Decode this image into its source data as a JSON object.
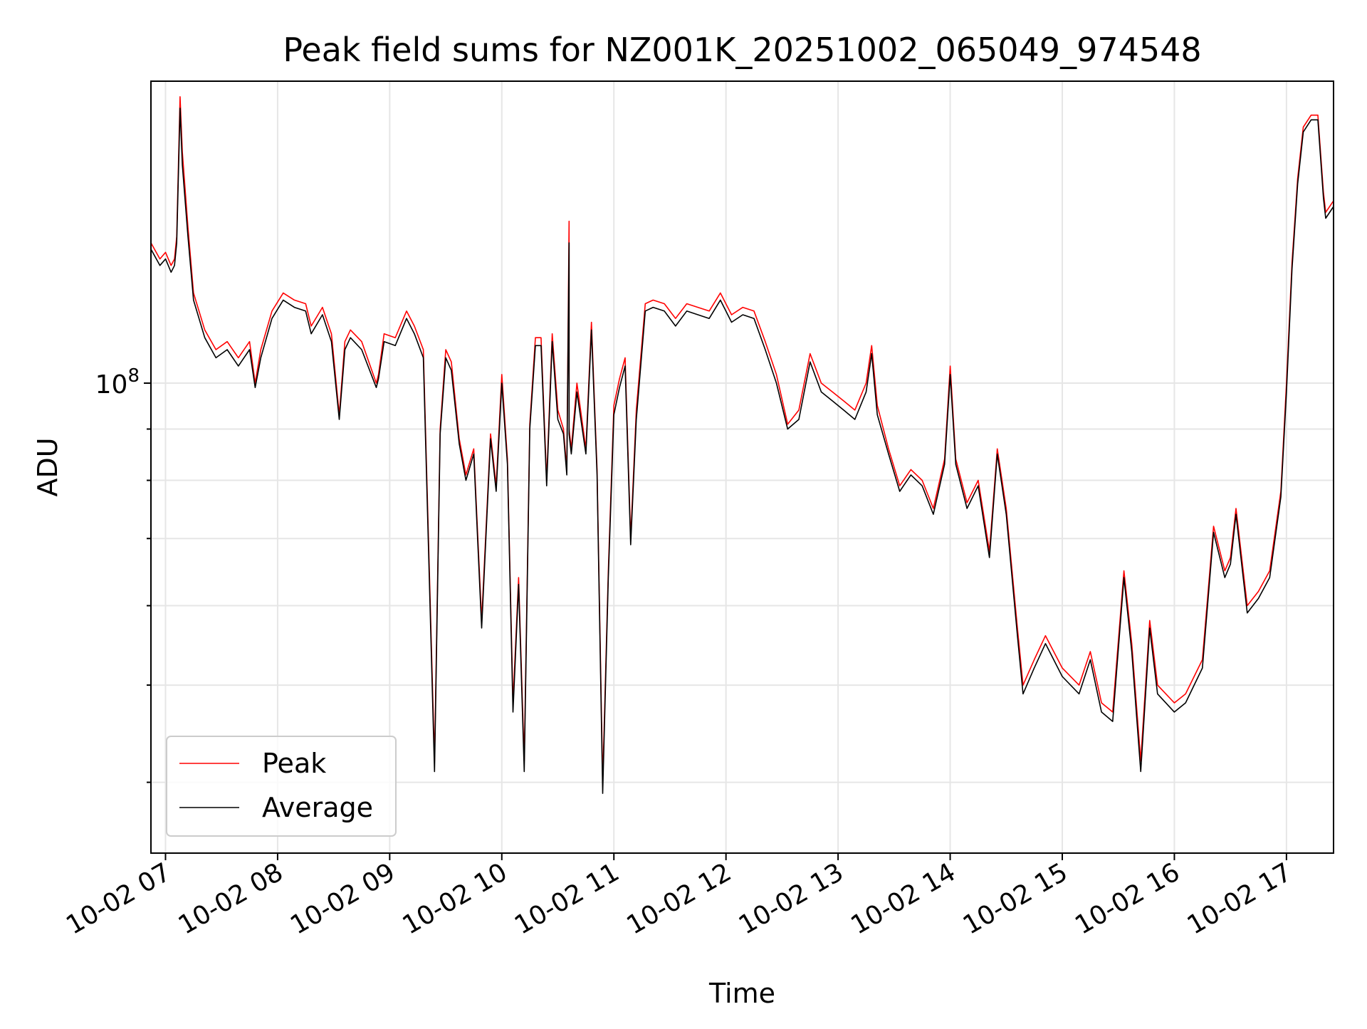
{
  "chart_data": {
    "type": "line",
    "title": "Peak field sums for NZ001K_20251002_065049_974548",
    "xlabel": "Time",
    "ylabel": "ADU",
    "yscale": "log",
    "grid": true,
    "legend_placement": "lower-left",
    "x_unit": "hours since 2025-10-02 00:00",
    "xlim": [
      6.87,
      17.42
    ],
    "ylim": [
      34000000,
      200000000
    ],
    "x_ticks": [
      7,
      8,
      9,
      10,
      11,
      12,
      13,
      14,
      15,
      16,
      17
    ],
    "x_tick_labels": [
      "10-02 07",
      "10-02 08",
      "10-02 09",
      "10-02 10",
      "10-02 11",
      "10-02 12",
      "10-02 13",
      "10-02 14",
      "10-02 15",
      "10-02 16",
      "10-02 17"
    ],
    "y_major_ticks": [
      100000000
    ],
    "y_major_tick_labels": [
      {
        "base": "10",
        "exp": "8"
      }
    ],
    "y_minor_ticks": [
      40000000,
      50000000,
      60000000,
      70000000,
      80000000,
      90000000
    ],
    "series": [
      {
        "name": "Peak",
        "color": "#ff0000",
        "x": [
          6.87,
          6.95,
          7.0,
          7.05,
          7.08,
          7.1,
          7.13,
          7.15,
          7.2,
          7.25,
          7.35,
          7.45,
          7.55,
          7.65,
          7.75,
          7.8,
          7.85,
          7.95,
          8.05,
          8.15,
          8.25,
          8.3,
          8.4,
          8.48,
          8.55,
          8.6,
          8.65,
          8.75,
          8.88,
          8.9,
          8.95,
          9.05,
          9.15,
          9.22,
          9.3,
          9.4,
          9.45,
          9.5,
          9.55,
          9.62,
          9.68,
          9.75,
          9.82,
          9.9,
          9.95,
          10.0,
          10.05,
          10.1,
          10.15,
          10.2,
          10.25,
          10.3,
          10.35,
          10.4,
          10.45,
          10.5,
          10.55,
          10.58,
          10.6,
          10.6,
          10.62,
          10.67,
          10.75,
          10.8,
          10.85,
          10.9,
          10.95,
          11.0,
          11.05,
          11.1,
          11.15,
          11.2,
          11.28,
          11.35,
          11.45,
          11.55,
          11.65,
          11.75,
          11.85,
          11.95,
          12.05,
          12.15,
          12.25,
          12.35,
          12.45,
          12.55,
          12.65,
          12.75,
          12.85,
          12.95,
          13.05,
          13.15,
          13.25,
          13.3,
          13.35,
          13.45,
          13.55,
          13.65,
          13.75,
          13.85,
          13.95,
          14.0,
          14.05,
          14.15,
          14.25,
          14.35,
          14.42,
          14.5,
          14.6,
          14.65,
          14.75,
          14.85,
          15.0,
          15.15,
          15.25,
          15.35,
          15.45,
          15.55,
          15.62,
          15.7,
          15.78,
          15.85,
          16.0,
          16.1,
          16.25,
          16.35,
          16.45,
          16.5,
          16.55,
          16.65,
          16.75,
          16.85,
          16.95,
          17.0,
          17.05,
          17.1,
          17.15,
          17.22,
          17.28,
          17.33,
          17.35,
          17.42
        ],
        "y": [
          138000000,
          133000000,
          135000000,
          131000000,
          133000000,
          140000000,
          193000000,
          170000000,
          143000000,
          123000000,
          113000000,
          108000000,
          110000000,
          106000000,
          110000000,
          100000000,
          108000000,
          118000000,
          123000000,
          121000000,
          120000000,
          114000000,
          119000000,
          112000000,
          93000000,
          110000000,
          113000000,
          110000000,
          100000000,
          102000000,
          112000000,
          111000000,
          118000000,
          114000000,
          108000000,
          42000000,
          90000000,
          108000000,
          105000000,
          88000000,
          81000000,
          86000000,
          58000000,
          89000000,
          79000000,
          102000000,
          84000000,
          48000000,
          64000000,
          42000000,
          91000000,
          111000000,
          111000000,
          80000000,
          112000000,
          94000000,
          90000000,
          82000000,
          145000000,
          90000000,
          86000000,
          100000000,
          86000000,
          115000000,
          82000000,
          40000000,
          65000000,
          95000000,
          101000000,
          106000000,
          70000000,
          94000000,
          120000000,
          121000000,
          120000000,
          116000000,
          120000000,
          119000000,
          118000000,
          123000000,
          117000000,
          119000000,
          118000000,
          110000000,
          102000000,
          91000000,
          94000000,
          107000000,
          100000000,
          98000000,
          96000000,
          94000000,
          100000000,
          109000000,
          95000000,
          86000000,
          79000000,
          82000000,
          80000000,
          75000000,
          84000000,
          104000000,
          84000000,
          76000000,
          80000000,
          68000000,
          86000000,
          75000000,
          57000000,
          50000000,
          53000000,
          56000000,
          52000000,
          50000000,
          54000000,
          48000000,
          47000000,
          65000000,
          55000000,
          42000000,
          58000000,
          50000000,
          48000000,
          49000000,
          53000000,
          72000000,
          65000000,
          67000000,
          75000000,
          60000000,
          62000000,
          65000000,
          78000000,
          100000000,
          132000000,
          160000000,
          180000000,
          185000000,
          185000000,
          155000000,
          148000000,
          152000000
        ]
      },
      {
        "name": "Average",
        "color": "#000000",
        "x": [
          6.87,
          6.95,
          7.0,
          7.05,
          7.08,
          7.1,
          7.13,
          7.15,
          7.2,
          7.25,
          7.35,
          7.45,
          7.55,
          7.65,
          7.75,
          7.8,
          7.85,
          7.95,
          8.05,
          8.15,
          8.25,
          8.3,
          8.4,
          8.48,
          8.55,
          8.6,
          8.65,
          8.75,
          8.88,
          8.9,
          8.95,
          9.05,
          9.15,
          9.22,
          9.3,
          9.4,
          9.45,
          9.5,
          9.55,
          9.62,
          9.68,
          9.75,
          9.82,
          9.9,
          9.95,
          10.0,
          10.05,
          10.1,
          10.15,
          10.2,
          10.25,
          10.3,
          10.35,
          10.4,
          10.45,
          10.5,
          10.55,
          10.58,
          10.6,
          10.6,
          10.62,
          10.67,
          10.75,
          10.8,
          10.85,
          10.9,
          10.95,
          11.0,
          11.05,
          11.1,
          11.15,
          11.2,
          11.28,
          11.35,
          11.45,
          11.55,
          11.65,
          11.75,
          11.85,
          11.95,
          12.05,
          12.15,
          12.25,
          12.35,
          12.45,
          12.55,
          12.65,
          12.75,
          12.85,
          12.95,
          13.05,
          13.15,
          13.25,
          13.3,
          13.35,
          13.45,
          13.55,
          13.65,
          13.75,
          13.85,
          13.95,
          14.0,
          14.05,
          14.15,
          14.25,
          14.35,
          14.42,
          14.5,
          14.6,
          14.65,
          14.75,
          14.85,
          15.0,
          15.15,
          15.25,
          15.35,
          15.45,
          15.55,
          15.62,
          15.7,
          15.78,
          15.85,
          16.0,
          16.1,
          16.25,
          16.35,
          16.45,
          16.5,
          16.55,
          16.65,
          16.75,
          16.85,
          16.95,
          17.0,
          17.05,
          17.1,
          17.15,
          17.22,
          17.28,
          17.33,
          17.35,
          17.42
        ],
        "y": [
          136000000,
          131000000,
          133000000,
          129000000,
          131000000,
          138000000,
          188000000,
          165000000,
          140000000,
          121000000,
          111000000,
          106000000,
          108000000,
          104000000,
          108000000,
          99000000,
          106000000,
          116000000,
          121000000,
          119000000,
          118000000,
          112000000,
          117000000,
          110000000,
          92000000,
          108000000,
          111000000,
          108000000,
          99000000,
          101000000,
          110000000,
          109000000,
          116000000,
          112000000,
          106000000,
          41000000,
          89000000,
          106000000,
          103000000,
          87000000,
          80000000,
          85000000,
          57000000,
          88000000,
          78000000,
          100000000,
          83000000,
          47000000,
          63000000,
          41000000,
          90000000,
          109000000,
          109000000,
          79000000,
          110000000,
          92000000,
          89000000,
          81000000,
          138000000,
          89000000,
          85000000,
          98000000,
          85000000,
          113000000,
          81000000,
          39000000,
          64000000,
          93000000,
          99000000,
          104000000,
          69000000,
          92000000,
          118000000,
          119000000,
          118000000,
          114000000,
          118000000,
          117000000,
          116000000,
          121000000,
          115000000,
          117000000,
          116000000,
          108000000,
          100000000,
          90000000,
          92000000,
          105000000,
          98000000,
          96000000,
          94000000,
          92000000,
          98000000,
          107000000,
          93000000,
          85000000,
          78000000,
          81000000,
          79000000,
          74000000,
          83000000,
          102000000,
          83000000,
          75000000,
          79000000,
          67000000,
          85000000,
          74000000,
          56000000,
          49000000,
          52000000,
          55000000,
          51000000,
          49000000,
          53000000,
          47000000,
          46000000,
          64000000,
          54000000,
          41000000,
          57000000,
          49000000,
          47000000,
          48000000,
          52000000,
          71000000,
          64000000,
          66000000,
          74000000,
          59000000,
          61000000,
          64000000,
          77000000,
          98000000,
          130000000,
          158000000,
          178000000,
          183000000,
          183000000,
          153000000,
          146000000,
          150000000
        ]
      }
    ]
  }
}
